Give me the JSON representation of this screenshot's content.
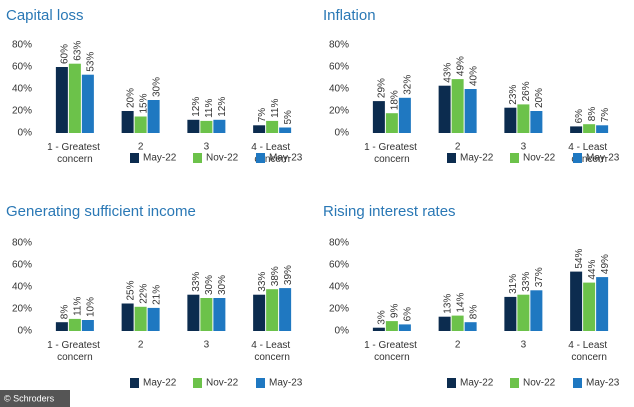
{
  "chart_data": [
    {
      "type": "bar",
      "title": "Capital loss",
      "categories": [
        "1 - Greatest concern",
        "2",
        "3",
        "4 - Least concern"
      ],
      "series": [
        {
          "name": "May-22",
          "color": "#0c2c4f",
          "values": [
            60,
            20,
            12,
            7
          ],
          "value_labels": [
            "60%",
            "20%",
            "12%",
            "7%"
          ]
        },
        {
          "name": "Nov-22",
          "color": "#6cc24a",
          "values": [
            63,
            15,
            11,
            11
          ],
          "value_labels": [
            "63%",
            "15%",
            "11%",
            "11%"
          ]
        },
        {
          "name": "May-23",
          "color": "#1f78c1",
          "values": [
            53,
            30,
            12,
            5
          ],
          "value_labels": [
            "53%",
            "30%",
            "12%",
            "5%"
          ]
        }
      ],
      "ylim": [
        0,
        80
      ],
      "yticks": [
        {
          "value": 0,
          "label": "0%"
        },
        {
          "value": 20,
          "label": "20%"
        },
        {
          "value": 40,
          "label": "40%"
        },
        {
          "value": 60,
          "label": "60%"
        },
        {
          "value": 80,
          "label": "80%"
        }
      ]
    },
    {
      "type": "bar",
      "title": "Inflation",
      "categories": [
        "1 - Greatest concern",
        "2",
        "3",
        "4 - Least concern"
      ],
      "series": [
        {
          "name": "May-22",
          "color": "#0c2c4f",
          "values": [
            29,
            43,
            23,
            6
          ],
          "value_labels": [
            "29%",
            "43%",
            "23%",
            "6%"
          ]
        },
        {
          "name": "Nov-22",
          "color": "#6cc24a",
          "values": [
            18,
            49,
            26,
            8
          ],
          "value_labels": [
            "18%",
            "49%",
            "26%",
            "8%"
          ]
        },
        {
          "name": "May-23",
          "color": "#1f78c1",
          "values": [
            32,
            40,
            20,
            7
          ],
          "value_labels": [
            "32%",
            "40%",
            "20%",
            "7%"
          ]
        }
      ],
      "ylim": [
        0,
        80
      ],
      "yticks": [
        {
          "value": 0,
          "label": "0%"
        },
        {
          "value": 20,
          "label": "20%"
        },
        {
          "value": 40,
          "label": "40%"
        },
        {
          "value": 60,
          "label": "60%"
        },
        {
          "value": 80,
          "label": "80%"
        }
      ]
    },
    {
      "type": "bar",
      "title": "Generating sufficient income",
      "categories": [
        "1 - Greatest concern",
        "2",
        "3",
        "4 - Least concern"
      ],
      "series": [
        {
          "name": "May-22",
          "color": "#0c2c4f",
          "values": [
            8,
            25,
            33,
            33
          ],
          "value_labels": [
            "8%",
            "25%",
            "33%",
            "33%"
          ]
        },
        {
          "name": "Nov-22",
          "color": "#6cc24a",
          "values": [
            11,
            22,
            30,
            38
          ],
          "value_labels": [
            "11%",
            "22%",
            "30%",
            "38%"
          ]
        },
        {
          "name": "May-23",
          "color": "#1f78c1",
          "values": [
            10,
            21,
            30,
            39
          ],
          "value_labels": [
            "10%",
            "21%",
            "30%",
            "39%"
          ]
        }
      ],
      "ylim": [
        0,
        80
      ],
      "yticks": [
        {
          "value": 0,
          "label": "0%"
        },
        {
          "value": 20,
          "label": "20%"
        },
        {
          "value": 40,
          "label": "40%"
        },
        {
          "value": 60,
          "label": "60%"
        },
        {
          "value": 80,
          "label": "80%"
        }
      ]
    },
    {
      "type": "bar",
      "title": "Rising interest rates",
      "categories": [
        "1 - Greatest concern",
        "2",
        "3",
        "4 - Least concern"
      ],
      "series": [
        {
          "name": "May-22",
          "color": "#0c2c4f",
          "values": [
            3,
            13,
            31,
            54
          ],
          "value_labels": [
            "3%",
            "13%",
            "31%",
            "54%"
          ]
        },
        {
          "name": "Nov-22",
          "color": "#6cc24a",
          "values": [
            9,
            14,
            33,
            44
          ],
          "value_labels": [
            "9%",
            "14%",
            "33%",
            "44%"
          ]
        },
        {
          "name": "May-23",
          "color": "#1f78c1",
          "values": [
            6,
            8,
            37,
            49
          ],
          "value_labels": [
            "6%",
            "8%",
            "37%",
            "49%"
          ]
        }
      ],
      "ylim": [
        0,
        80
      ],
      "yticks": [
        {
          "value": 0,
          "label": "0%"
        },
        {
          "value": 20,
          "label": "20%"
        },
        {
          "value": 40,
          "label": "40%"
        },
        {
          "value": 60,
          "label": "60%"
        },
        {
          "value": 80,
          "label": "80%"
        }
      ]
    }
  ],
  "source": "© Schroders"
}
